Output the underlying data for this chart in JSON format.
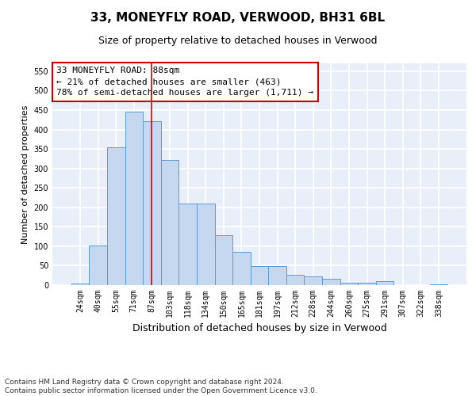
{
  "title1": "33, MONEYFLY ROAD, VERWOOD, BH31 6BL",
  "title2": "Size of property relative to detached houses in Verwood",
  "xlabel": "Distribution of detached houses by size in Verwood",
  "ylabel": "Number of detached properties",
  "categories": [
    "24sqm",
    "40sqm",
    "55sqm",
    "71sqm",
    "87sqm",
    "103sqm",
    "118sqm",
    "134sqm",
    "150sqm",
    "165sqm",
    "181sqm",
    "197sqm",
    "212sqm",
    "228sqm",
    "244sqm",
    "260sqm",
    "275sqm",
    "291sqm",
    "307sqm",
    "322sqm",
    "338sqm"
  ],
  "values": [
    5,
    102,
    355,
    445,
    422,
    321,
    210,
    210,
    128,
    85,
    48,
    48,
    27,
    22,
    17,
    6,
    6,
    10,
    1,
    1,
    2
  ],
  "bar_color": "#c5d8f0",
  "bar_edge_color": "#5b9bd5",
  "highlight_x": "87sqm",
  "highlight_line_color": "#cc0000",
  "annotation_line1": "33 MONEYFLY ROAD: 88sqm",
  "annotation_line2": "← 21% of detached houses are smaller (463)",
  "annotation_line3": "78% of semi-detached houses are larger (1,711) →",
  "annotation_box_color": "#ffffff",
  "annotation_box_edge": "#cc0000",
  "ylim": [
    0,
    570
  ],
  "yticks": [
    0,
    50,
    100,
    150,
    200,
    250,
    300,
    350,
    400,
    450,
    500,
    550
  ],
  "footnote": "Contains HM Land Registry data © Crown copyright and database right 2024.\nContains public sector information licensed under the Open Government Licence v3.0.",
  "background_color": "#e8eff8",
  "grid_color": "#ffffff",
  "title1_fontsize": 11,
  "title2_fontsize": 9,
  "xlabel_fontsize": 9,
  "ylabel_fontsize": 8,
  "tick_fontsize": 7,
  "annotation_fontsize": 8,
  "footnote_fontsize": 6.5
}
